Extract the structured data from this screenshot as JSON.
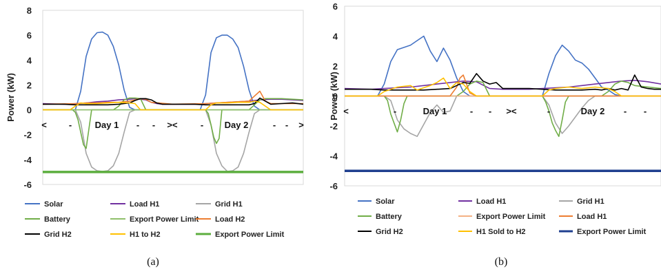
{
  "chart_data": [
    {
      "type": "line",
      "ylabel": "Power (kW)",
      "ylim": [
        -6,
        8
      ],
      "yticks": [
        "8",
        "6",
        "4",
        "2",
        "0",
        "-2",
        "-4",
        "-6"
      ],
      "xlim": [
        0,
        48
      ],
      "category_labels": [
        "<",
        "-",
        "Day 1",
        "-",
        "-",
        "><",
        "-",
        "Day 2",
        "-",
        "-",
        ">"
      ],
      "caption": "(a)",
      "series": [
        {
          "name": "Solar",
          "color": "#4472C4",
          "x": [
            0,
            4,
            5,
            6,
            7,
            8,
            9,
            10,
            11,
            12,
            13,
            14,
            15,
            16,
            17,
            18,
            19,
            20,
            24,
            29,
            30,
            31,
            32,
            33,
            34,
            35,
            36,
            37,
            38,
            39,
            40,
            41,
            42,
            48
          ],
          "y": [
            0,
            0,
            0,
            0,
            1.5,
            4.3,
            5.7,
            6.2,
            6.25,
            6.0,
            5.1,
            3.6,
            1.6,
            0.2,
            0,
            0,
            0,
            0,
            0,
            0,
            1.2,
            4.6,
            5.8,
            6.0,
            6.0,
            5.7,
            5.0,
            3.5,
            1.6,
            0.3,
            0,
            0,
            0,
            0
          ]
        },
        {
          "name": "Load H1",
          "color": "#7030A0",
          "x": [
            0,
            4,
            6,
            8,
            10,
            12,
            14,
            16,
            17,
            18,
            19,
            20,
            21,
            22,
            24,
            26,
            28,
            30,
            32,
            34,
            36,
            38,
            40,
            42,
            44,
            46,
            48
          ],
          "y": [
            0.5,
            0.45,
            0.5,
            0.55,
            0.65,
            0.7,
            0.8,
            0.85,
            0.9,
            0.85,
            0.8,
            0.6,
            0.5,
            0.45,
            0.45,
            0.45,
            0.45,
            0.5,
            0.55,
            0.6,
            0.65,
            0.7,
            0.8,
            0.85,
            0.85,
            0.8,
            0.75
          ]
        },
        {
          "name": "Grid H1",
          "color": "#A5A5A5",
          "x": [
            0,
            6,
            7,
            8,
            9,
            10,
            11,
            12,
            13,
            14,
            15,
            16,
            17,
            30,
            31,
            32,
            33,
            34,
            35,
            36,
            37,
            38,
            39,
            40,
            48
          ],
          "y": [
            0,
            0,
            -1,
            -3.5,
            -4.6,
            -4.9,
            -4.95,
            -4.9,
            -4.5,
            -3.5,
            -1.8,
            -0.2,
            0,
            0,
            -1.2,
            -3.5,
            -4.5,
            -4.95,
            -4.9,
            -4.6,
            -3.5,
            -1.8,
            -0.3,
            0,
            0
          ]
        },
        {
          "name": "Battery",
          "color": "#70AD47",
          "x": [
            0,
            5.5,
            6,
            6.5,
            7,
            7.5,
            8,
            9,
            13,
            14,
            15,
            16,
            17,
            18,
            19,
            30,
            30.5,
            31,
            31.5,
            32,
            32.5,
            33,
            34,
            38,
            39,
            40,
            41,
            42,
            44,
            46,
            48
          ],
          "y": [
            0,
            0,
            -0.2,
            -0.8,
            -1.8,
            -2.8,
            -3.1,
            0,
            0,
            0.3,
            0.8,
            0.95,
            0.95,
            0.9,
            0,
            0,
            -0.3,
            -1.2,
            -2.2,
            -2.7,
            -2.3,
            0,
            0,
            0,
            0.4,
            0.8,
            0.9,
            0.9,
            0.9,
            0.85,
            0.8
          ]
        },
        {
          "name": "Export Power Limit",
          "color": "#8FBF6A",
          "x": [
            0,
            48
          ],
          "y": [
            0,
            0
          ]
        },
        {
          "name": "Load H2",
          "color": "#ED7D31",
          "x": [
            0,
            6,
            8,
            10,
            12,
            14,
            16,
            17,
            18,
            19,
            20,
            24,
            30,
            32,
            34,
            36,
            38,
            39,
            40,
            41,
            42,
            48
          ],
          "y": [
            0.45,
            0.5,
            0.55,
            0.55,
            0.6,
            0.6,
            0.7,
            0.8,
            0.9,
            0.85,
            0.6,
            0.45,
            0.5,
            0.55,
            0.6,
            0.65,
            0.7,
            1.1,
            1.5,
            0.7,
            0.5,
            0.5
          ]
        },
        {
          "name": "Grid H2",
          "color": "#000000",
          "x": [
            0,
            4,
            6,
            8,
            10,
            12,
            14,
            15,
            16,
            17,
            18,
            19,
            20,
            21,
            22,
            24,
            26,
            28,
            30,
            32,
            34,
            36,
            38,
            39,
            40,
            41,
            42,
            44,
            46,
            48
          ],
          "y": [
            0.45,
            0.45,
            0.4,
            0.4,
            0.4,
            0.4,
            0.45,
            0.5,
            0.55,
            0.75,
            0.9,
            0.9,
            0.8,
            0.55,
            0.45,
            0.45,
            0.45,
            0.45,
            0.4,
            0.4,
            0.4,
            0.4,
            0.4,
            0.5,
            0.95,
            0.7,
            0.45,
            0.5,
            0.55,
            0.45
          ]
        },
        {
          "name": "H1 to H2",
          "color": "#FFC000",
          "x": [
            0,
            5,
            6,
            7,
            8,
            10,
            12,
            14,
            16,
            17,
            18,
            24,
            30,
            31,
            32,
            34,
            36,
            38,
            39,
            40,
            41,
            42,
            48
          ],
          "y": [
            0,
            0,
            0.3,
            0.55,
            0.5,
            0.5,
            0.55,
            0.6,
            0.55,
            0.5,
            0,
            0,
            0,
            0.4,
            0.55,
            0.55,
            0.6,
            0.6,
            0.7,
            0.6,
            0.3,
            0,
            0
          ]
        },
        {
          "name": "Export Power Limit",
          "color": "#5CAE3E",
          "width": 3.5,
          "x": [
            0,
            48
          ],
          "y": [
            -5,
            -5
          ]
        }
      ]
    },
    {
      "type": "line",
      "ylabel": "Power (kW)",
      "ylim": [
        -6,
        6
      ],
      "yticks": [
        "6",
        "4",
        "2",
        "0",
        "-2",
        "-4",
        "-6"
      ],
      "xlim": [
        0,
        48
      ],
      "category_labels": [
        "<",
        "-",
        "Day 1",
        "-",
        "-",
        "><",
        "-",
        "Day 2",
        "-",
        "-"
      ],
      "caption": "(b)",
      "series": [
        {
          "name": "Solar",
          "color": "#4472C4",
          "x": [
            0,
            5,
            6,
            7,
            8,
            10,
            11,
            12,
            13,
            14,
            15,
            16,
            17,
            18,
            19,
            20,
            24,
            30,
            31,
            32,
            33,
            34,
            35,
            36,
            37,
            38,
            39,
            40,
            41,
            42,
            48
          ],
          "y": [
            0,
            0,
            0.8,
            2.3,
            3.1,
            3.4,
            3.7,
            4.0,
            3.0,
            2.3,
            3.2,
            2.4,
            1.2,
            0.3,
            0,
            0,
            0,
            0,
            1.5,
            2.7,
            3.4,
            3.0,
            2.4,
            2.2,
            1.8,
            1.2,
            0.6,
            0.4,
            0.1,
            0,
            0
          ]
        },
        {
          "name": "Load H1",
          "color": "#7030A0",
          "x": [
            0,
            4,
            6,
            8,
            10,
            12,
            14,
            16,
            18,
            20,
            22,
            24,
            26,
            28,
            30,
            32,
            34,
            36,
            38,
            40,
            42,
            44,
            46,
            48
          ],
          "y": [
            0.5,
            0.45,
            0.5,
            0.55,
            0.6,
            0.7,
            0.8,
            0.9,
            1.0,
            0.95,
            0.5,
            0.45,
            0.45,
            0.45,
            0.5,
            0.55,
            0.6,
            0.7,
            0.8,
            0.9,
            1.0,
            1.05,
            0.95,
            0.8
          ]
        },
        {
          "name": "Grid H1",
          "color": "#A5A5A5",
          "x": [
            0,
            6,
            7,
            8,
            9,
            10,
            11,
            12,
            13,
            14,
            15,
            16,
            17,
            18,
            30,
            31,
            32,
            33,
            34,
            35,
            36,
            37,
            38,
            39,
            40,
            48
          ],
          "y": [
            0,
            0,
            -0.3,
            -1.6,
            -2.2,
            -2.5,
            -2.7,
            -1.9,
            -1.1,
            -0.6,
            -1.1,
            -1.0,
            0,
            0,
            0,
            -0.6,
            -1.8,
            -2.5,
            -2.0,
            -1.4,
            -0.8,
            -0.3,
            0,
            0,
            0,
            0
          ]
        },
        {
          "name": "Battery",
          "color": "#70AD47",
          "x": [
            0,
            6,
            6.5,
            7,
            7.5,
            8,
            8.5,
            9,
            9.5,
            10,
            11,
            17,
            18,
            19,
            20,
            21,
            22,
            30,
            30.5,
            31,
            31.5,
            32,
            32.5,
            33,
            33.5,
            34,
            35,
            39,
            40,
            41,
            42,
            43,
            44,
            48
          ],
          "y": [
            0,
            0,
            -0.3,
            -1.2,
            -1.8,
            -2.4,
            -1.6,
            -0.5,
            0,
            0,
            0,
            0,
            0.3,
            0.8,
            1.0,
            0.9,
            0,
            0,
            -0.4,
            -1.0,
            -1.8,
            -2.3,
            -2.7,
            -1.6,
            -0.4,
            0,
            0,
            0,
            0.3,
            0.8,
            1.0,
            0.9,
            0.7,
            0.5
          ]
        },
        {
          "name": "Export Power Limit",
          "color": "#F4B183",
          "x": [
            0,
            48
          ],
          "y": [
            0,
            0
          ]
        },
        {
          "name": "Load H1",
          "color": "#ED7D31",
          "x": [
            0,
            16,
            17,
            17.5,
            18,
            18.5,
            19,
            20,
            48
          ],
          "y": [
            0,
            0,
            0.6,
            1.2,
            1.4,
            0.8,
            0.2,
            0,
            0
          ]
        },
        {
          "name": "Grid H2",
          "color": "#000000",
          "x": [
            0,
            4,
            6,
            8,
            10,
            12,
            14,
            16,
            17,
            18,
            19,
            20,
            21,
            22,
            23,
            24,
            25,
            26,
            28,
            30,
            32,
            34,
            36,
            38,
            39,
            40,
            41,
            42,
            43,
            44,
            45,
            46,
            47,
            48
          ],
          "y": [
            0.45,
            0.45,
            0.4,
            0.4,
            0.4,
            0.4,
            0.45,
            0.5,
            0.7,
            0.9,
            0.85,
            1.5,
            1.0,
            0.8,
            0.9,
            0.5,
            0.5,
            0.5,
            0.5,
            0.45,
            0.4,
            0.4,
            0.4,
            0.45,
            0.4,
            0.5,
            0.4,
            0.5,
            0.4,
            1.4,
            0.6,
            0.5,
            0.45,
            0.45
          ]
        },
        {
          "name": "H1 Sold to H2",
          "color": "#FFC000",
          "x": [
            0,
            5,
            6,
            8,
            10,
            11,
            12,
            13,
            14,
            15,
            16,
            17,
            18,
            19,
            20,
            22,
            24,
            30,
            31,
            32,
            34,
            36,
            38,
            40,
            41,
            42,
            48
          ],
          "y": [
            0,
            0,
            0.3,
            0.6,
            0.7,
            0.4,
            0.55,
            0.7,
            0.9,
            1.2,
            0.5,
            0.9,
            0.8,
            0.3,
            0,
            0,
            0,
            0,
            0.4,
            0.5,
            0.6,
            0.5,
            0.6,
            0.5,
            0.3,
            0,
            0
          ]
        },
        {
          "name": "Export Power Limit",
          "color": "#1F3F8F",
          "width": 3.5,
          "x": [
            0,
            48
          ],
          "y": [
            -5,
            -5
          ]
        }
      ]
    }
  ]
}
